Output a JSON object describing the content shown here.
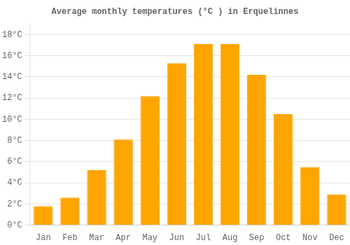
{
  "chart_data": {
    "type": "bar",
    "title": "Average monthly temperatures (°C ) in Erquelinnes",
    "categories": [
      "Jan",
      "Feb",
      "Mar",
      "Apr",
      "May",
      "Jun",
      "Jul",
      "Aug",
      "Sep",
      "Oct",
      "Nov",
      "Dec"
    ],
    "values": [
      1.8,
      2.6,
      5.2,
      8.1,
      12.2,
      15.3,
      17.1,
      17.1,
      14.2,
      10.5,
      5.5,
      2.9
    ],
    "color": "#FFA500",
    "ylim": [
      0,
      19
    ],
    "yticks": [
      {
        "value": 0,
        "label": "0°C"
      },
      {
        "value": 2,
        "label": "2°C"
      },
      {
        "value": 4,
        "label": "4°C"
      },
      {
        "value": 6,
        "label": "6°C"
      },
      {
        "value": 8,
        "label": "8°C"
      },
      {
        "value": 10,
        "label": "10°C"
      },
      {
        "value": 12,
        "label": "12°C"
      },
      {
        "value": 14,
        "label": "14°C"
      },
      {
        "value": 16,
        "label": "16°C"
      },
      {
        "value": 18,
        "label": "18°C"
      }
    ],
    "grid": true
  }
}
